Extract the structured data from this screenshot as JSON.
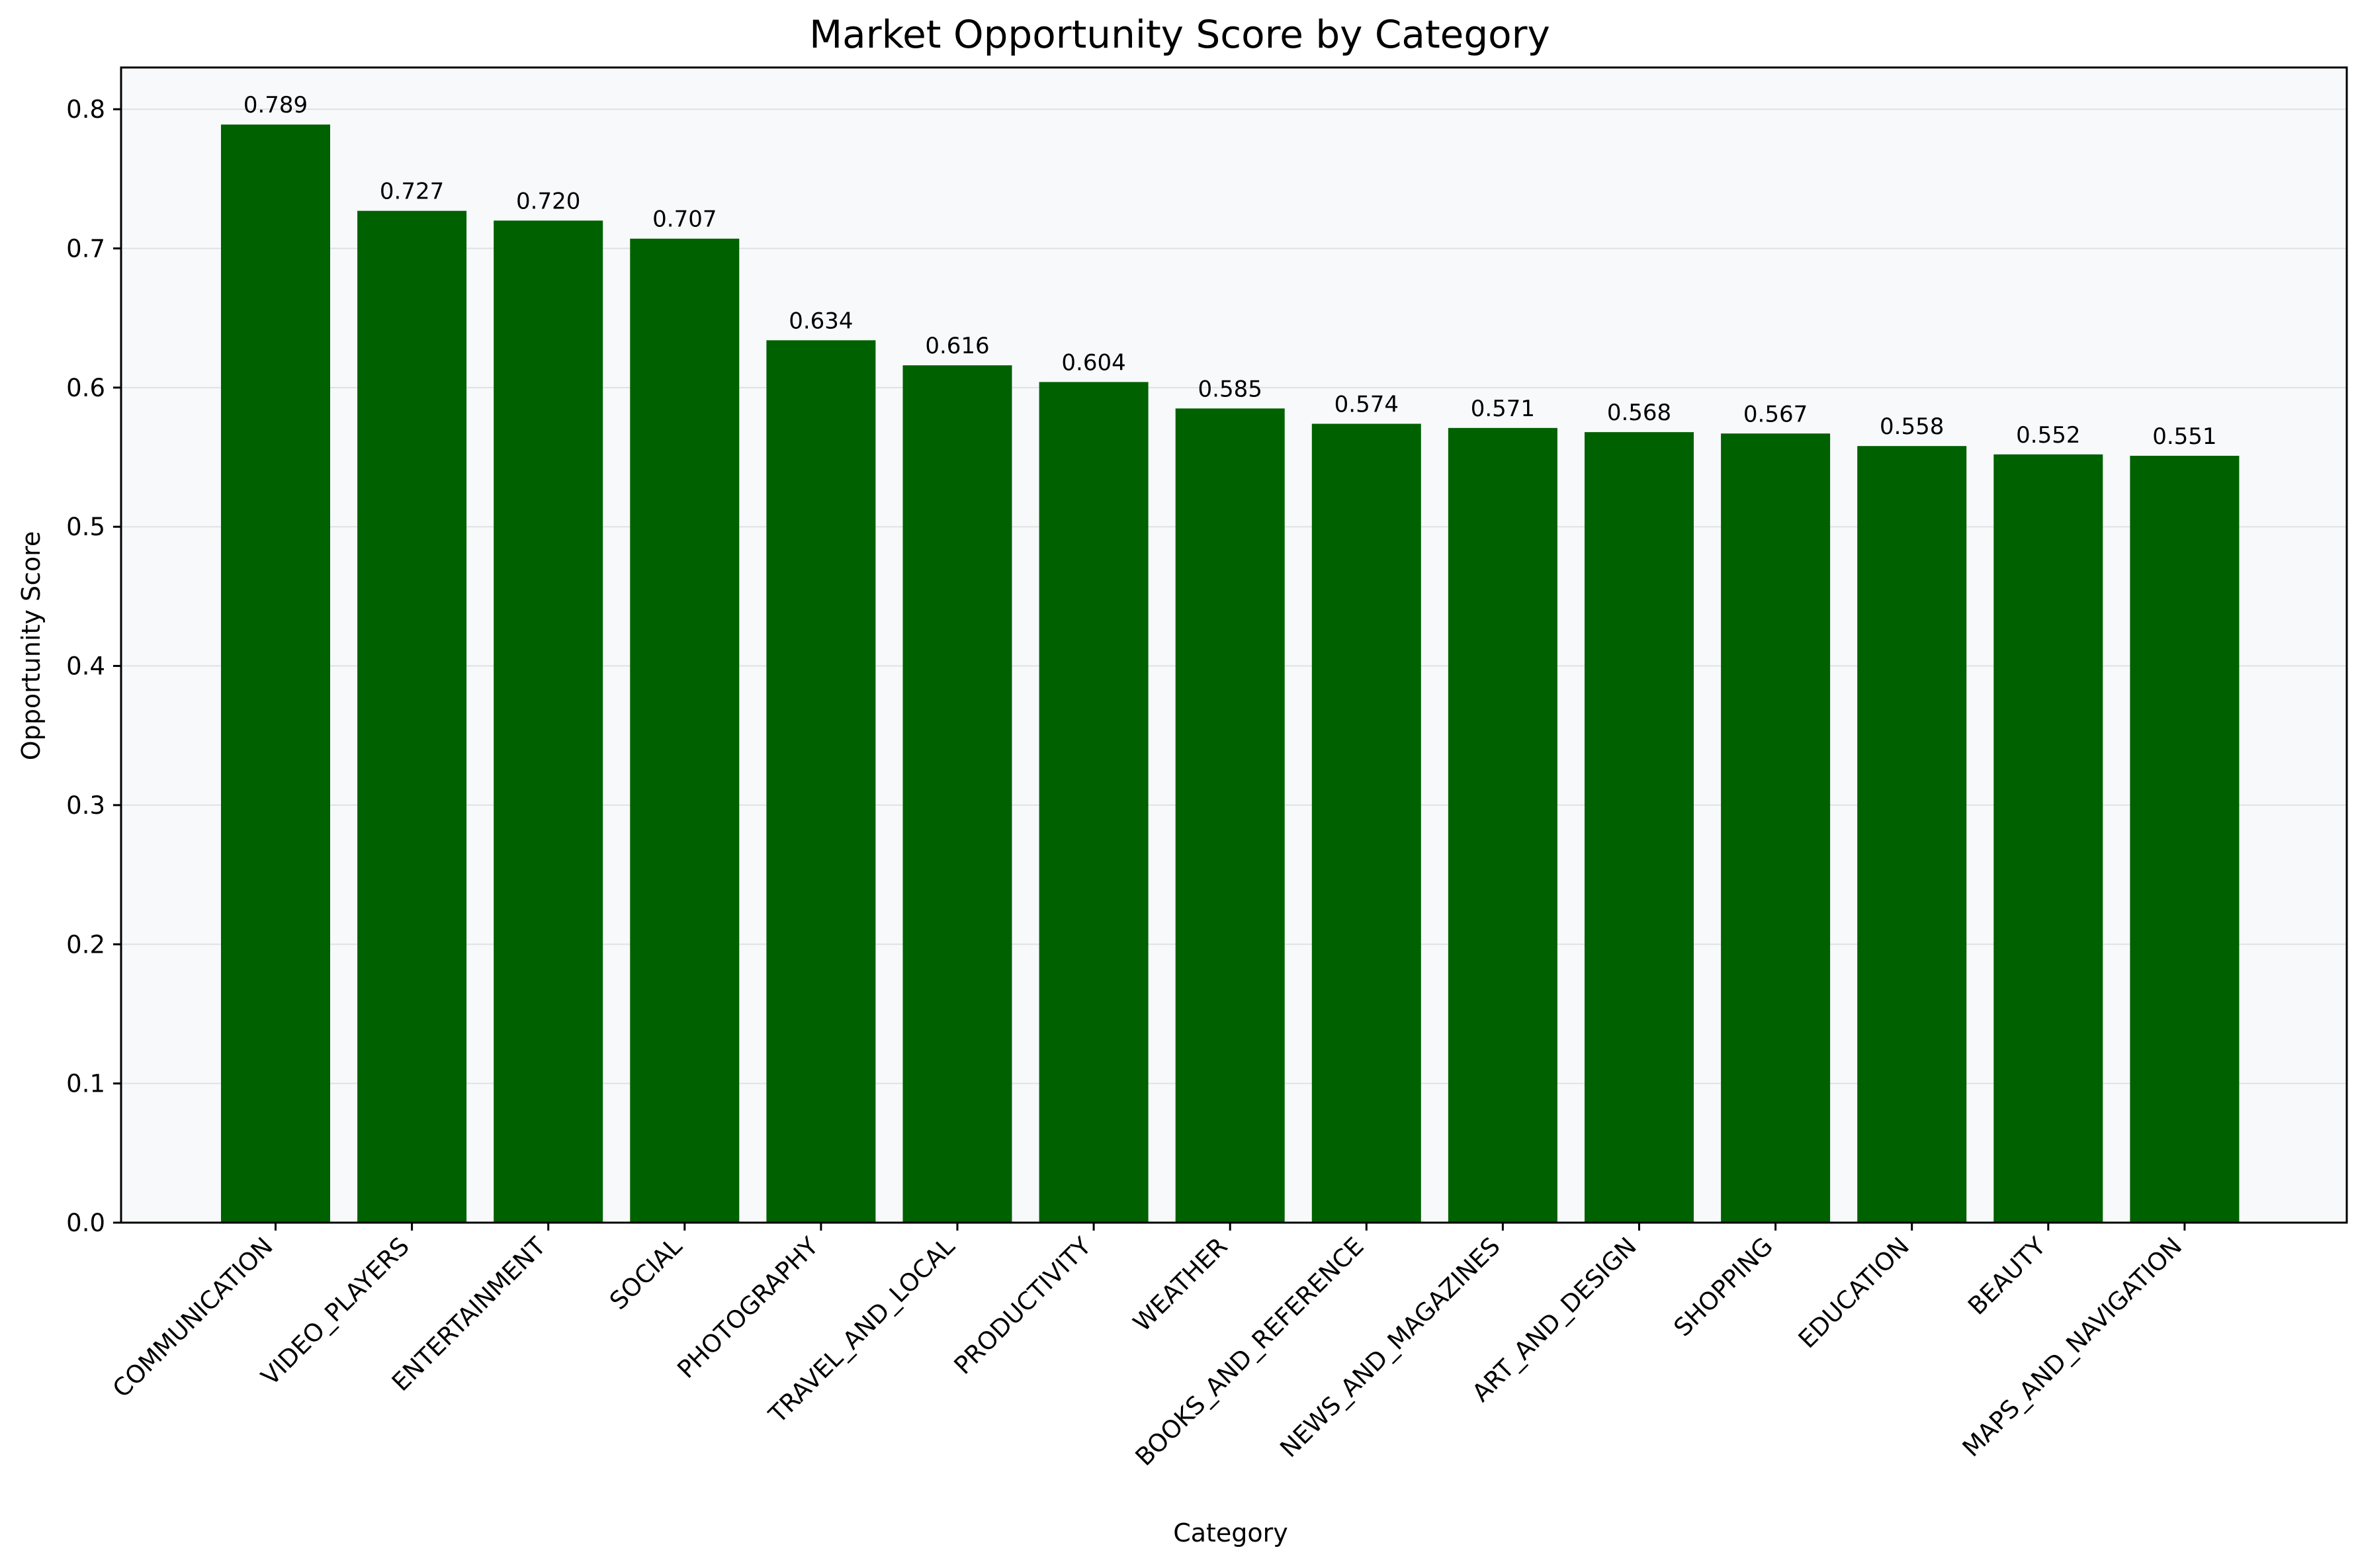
{
  "chart_data": {
    "type": "bar",
    "title": "Market Opportunity Score by Category",
    "xlabel": "Category",
    "ylabel": "Opportunity Score",
    "ylim": [
      0,
      0.83
    ],
    "yticks": [
      0.0,
      0.1,
      0.2,
      0.3,
      0.4,
      0.5,
      0.6,
      0.7,
      0.8
    ],
    "ytick_labels": [
      "0.0",
      "0.1",
      "0.2",
      "0.3",
      "0.4",
      "0.5",
      "0.6",
      "0.7",
      "0.8"
    ],
    "grid": "horizontal",
    "categories": [
      "COMMUNICATION",
      "VIDEO_PLAYERS",
      "ENTERTAINMENT",
      "SOCIAL",
      "PHOTOGRAPHY",
      "TRAVEL_AND_LOCAL",
      "PRODUCTIVITY",
      "WEATHER",
      "BOOKS_AND_REFERENCE",
      "NEWS_AND_MAGAZINES",
      "ART_AND_DESIGN",
      "SHOPPING",
      "EDUCATION",
      "BEAUTY",
      "MAPS_AND_NAVIGATION"
    ],
    "values": [
      0.789,
      0.727,
      0.72,
      0.707,
      0.634,
      0.616,
      0.604,
      0.585,
      0.574,
      0.571,
      0.568,
      0.567,
      0.558,
      0.552,
      0.551
    ],
    "value_labels": [
      "0.789",
      "0.727",
      "0.720",
      "0.707",
      "0.634",
      "0.616",
      "0.604",
      "0.585",
      "0.574",
      "0.571",
      "0.568",
      "0.567",
      "0.558",
      "0.552",
      "0.551"
    ]
  },
  "colors": {
    "bar": "#006100",
    "plot_background": "#f7f9fa",
    "grid": "#dfe2e4",
    "axis": "#000000"
  }
}
